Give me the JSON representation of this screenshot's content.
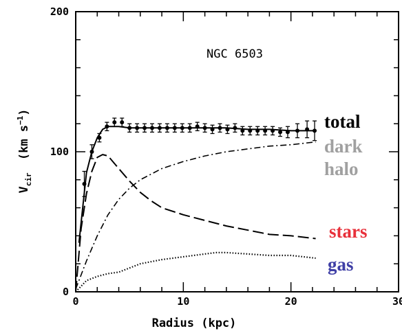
{
  "chart_data": {
    "type": "line",
    "title": "NGC 6503",
    "xlabel": "Radius (kpc)",
    "ylabel": "V",
    "ylabel_sub": "cir",
    "ylabel_units": "(km s",
    "ylabel_units_exp": "−1",
    "ylabel_units_close": ")",
    "xlim": [
      0,
      30
    ],
    "ylim": [
      0,
      200
    ],
    "xticks": [
      {
        "v": 0,
        "label": "0"
      },
      {
        "v": 10,
        "label": "10"
      },
      {
        "v": 20,
        "label": "20"
      },
      {
        "v": 30,
        "label": "30"
      }
    ],
    "yticks": [
      {
        "v": 0,
        "label": "0"
      },
      {
        "v": 100,
        "label": "100"
      },
      {
        "v": 200,
        "label": "200"
      }
    ],
    "legend_placement": "right",
    "observed": {
      "name": "total",
      "points": [
        {
          "x": 0.8,
          "y": 77,
          "err": 9
        },
        {
          "x": 1.5,
          "y": 100,
          "err": 5
        },
        {
          "x": 2.2,
          "y": 110,
          "err": 3
        },
        {
          "x": 2.9,
          "y": 118,
          "err": 3
        },
        {
          "x": 3.6,
          "y": 121,
          "err": 3
        },
        {
          "x": 4.3,
          "y": 121,
          "err": 3
        },
        {
          "x": 5.0,
          "y": 117,
          "err": 3
        },
        {
          "x": 5.7,
          "y": 117,
          "err": 3
        },
        {
          "x": 6.4,
          "y": 117,
          "err": 3
        },
        {
          "x": 7.1,
          "y": 117,
          "err": 3
        },
        {
          "x": 7.8,
          "y": 117,
          "err": 3
        },
        {
          "x": 8.5,
          "y": 117,
          "err": 3
        },
        {
          "x": 9.2,
          "y": 117,
          "err": 3
        },
        {
          "x": 9.9,
          "y": 117,
          "err": 3
        },
        {
          "x": 10.6,
          "y": 117,
          "err": 3
        },
        {
          "x": 11.3,
          "y": 118,
          "err": 3
        },
        {
          "x": 12.0,
          "y": 117,
          "err": 3
        },
        {
          "x": 12.7,
          "y": 116,
          "err": 3
        },
        {
          "x": 13.4,
          "y": 117,
          "err": 3
        },
        {
          "x": 14.1,
          "y": 116,
          "err": 3
        },
        {
          "x": 14.8,
          "y": 117,
          "err": 3
        },
        {
          "x": 15.5,
          "y": 115,
          "err": 3
        },
        {
          "x": 16.2,
          "y": 115,
          "err": 3
        },
        {
          "x": 16.9,
          "y": 115,
          "err": 3
        },
        {
          "x": 17.6,
          "y": 115,
          "err": 3
        },
        {
          "x": 18.3,
          "y": 115,
          "err": 3
        },
        {
          "x": 19.0,
          "y": 114,
          "err": 3
        },
        {
          "x": 19.7,
          "y": 114,
          "err": 4
        },
        {
          "x": 20.6,
          "y": 115,
          "err": 5
        },
        {
          "x": 21.5,
          "y": 116,
          "err": 6
        },
        {
          "x": 22.2,
          "y": 115,
          "err": 7
        }
      ]
    },
    "series": [
      {
        "name": "total",
        "style": "solid",
        "color": "#000000",
        "x": [
          0.3,
          1.0,
          1.5,
          2.0,
          2.5,
          3.0,
          4.0,
          5.0,
          6.0,
          8.0,
          10.0,
          12.0,
          14.0,
          16.0,
          18.0,
          20.0,
          22.3
        ],
        "y": [
          35,
          85,
          100,
          110,
          116,
          118,
          118,
          117,
          117,
          117,
          117,
          117,
          117,
          116,
          116,
          115,
          115
        ]
      },
      {
        "name": "dark halo",
        "style": "dashdot",
        "color": "#000000",
        "x": [
          0,
          1.0,
          2.0,
          3.0,
          4.0,
          5.0,
          6.0,
          8.0,
          10.0,
          12.0,
          14.0,
          16.0,
          18.0,
          20.0,
          22.3
        ],
        "y": [
          2,
          22,
          40,
          55,
          66,
          74,
          80,
          88,
          93,
          97,
          100,
          102,
          104,
          105,
          107
        ]
      },
      {
        "name": "stars",
        "style": "longdash",
        "color": "#000000",
        "x": [
          0,
          0.5,
          1.0,
          1.5,
          2.0,
          2.5,
          3.0,
          4.0,
          5.0,
          6.0,
          7.0,
          8.0,
          10.0,
          12.0,
          14.0,
          16.0,
          18.0,
          20.0,
          22.3
        ],
        "y": [
          0,
          45,
          70,
          86,
          96,
          98,
          97,
          88,
          79,
          71,
          65,
          60,
          55,
          51,
          47,
          44,
          41,
          40,
          38
        ]
      },
      {
        "name": "gas",
        "style": "dotted",
        "color": "#000000",
        "x": [
          0,
          1.0,
          2.0,
          3.0,
          4.0,
          5.0,
          6.0,
          8.0,
          10.0,
          12.0,
          13.0,
          14.0,
          16.0,
          18.0,
          20.0,
          22.3
        ],
        "y": [
          0,
          8,
          11,
          13,
          14,
          17,
          20,
          23,
          25,
          27,
          28,
          28,
          27,
          26,
          26,
          24
        ]
      }
    ],
    "legend": [
      {
        "lines": [
          "total"
        ],
        "color": "#000000"
      },
      {
        "lines": [
          "dark",
          "halo"
        ],
        "color": "#a0a0a0"
      },
      {
        "lines": [
          "stars"
        ],
        "color": "#e8303a"
      },
      {
        "lines": [
          "gas"
        ],
        "color": "#3f3fa6"
      }
    ]
  }
}
